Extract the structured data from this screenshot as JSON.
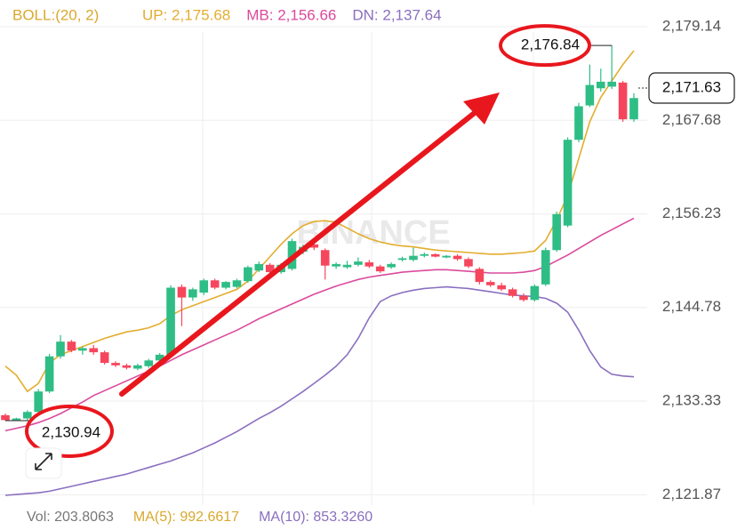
{
  "chart_data": {
    "type": "candlestick",
    "indicator_label": "BOLL:(20, 2)",
    "indicator_color": "#d9a82e",
    "up_color": "#2ebd85",
    "down_color": "#f6465d",
    "open": [
      2131.6,
      2131.0,
      2131.2,
      2132.0,
      2134.5,
      2138.8,
      2140.6,
      2139.5,
      2139.8,
      2139.3,
      2138.0,
      2137.7,
      2137.3,
      2137.6,
      2138.3,
      2139.0,
      2147.3,
      2146.0,
      2146.6,
      2148.1,
      2147.2,
      2147.3,
      2148.0,
      2149.3,
      2150.0,
      2149.1,
      2149.5,
      2151.6,
      2152.5,
      2151.8,
      2149.8,
      2149.7,
      2150.0,
      2150.3,
      2149.8,
      2149.7,
      2150.6,
      2150.6,
      2151.1,
      2151.3,
      2150.9,
      2151.1,
      2150.7,
      2149.5,
      2147.9,
      2147.5,
      2147.0,
      2146.2,
      2145.7,
      2147.6,
      2151.8,
      2154.8,
      2165.3,
      2169.5,
      2171.6,
      2171.8,
      2172.3,
      2167.8
    ],
    "high": [
      2131.8,
      2131.3,
      2132.2,
      2134.8,
      2139.1,
      2141.4,
      2140.8,
      2140.0,
      2140.2,
      2139.5,
      2138.2,
      2137.9,
      2137.9,
      2138.5,
      2139.2,
      2147.5,
      2147.6,
      2147.2,
      2148.3,
      2148.3,
      2148.0,
      2148.3,
      2149.9,
      2150.4,
      2150.2,
      2150.2,
      2153.2,
      2152.5,
      2152.8,
      2152.0,
      2150.3,
      2150.5,
      2150.9,
      2150.6,
      2150.0,
      2150.3,
      2151.0,
      2152.1,
      2151.5,
      2151.4,
      2151.2,
      2151.3,
      2150.9,
      2149.7,
      2148.1,
      2147.8,
      2147.2,
      2146.5,
      2147.6,
      2152.1,
      2156.5,
      2165.6,
      2169.8,
      2174.5,
      2174.0,
      2176.84,
      2172.5,
      2171.0
    ],
    "low": [
      2130.94,
      2130.95,
      2131.0,
      2131.8,
      2134.3,
      2138.5,
      2139.3,
      2139.0,
      2139.0,
      2137.8,
      2137.5,
      2137.2,
      2137.1,
      2137.4,
      2138.1,
      2138.8,
      2142.5,
      2145.6,
      2146.3,
      2147.0,
      2147.0,
      2147.1,
      2147.8,
      2149.1,
      2148.9,
      2148.9,
      2149.3,
      2151.3,
      2151.8,
      2148.2,
      2149.5,
      2149.5,
      2149.8,
      2149.6,
      2149.0,
      2149.5,
      2150.4,
      2150.4,
      2150.9,
      2150.9,
      2150.8,
      2150.5,
      2149.6,
      2147.6,
      2147.3,
      2146.8,
      2146.0,
      2145.5,
      2145.5,
      2147.4,
      2151.6,
      2154.6,
      2165.0,
      2169.3,
      2171.2,
      2171.5,
      2167.5,
      2167.5
    ],
    "close": [
      2131.0,
      2131.2,
      2132.0,
      2134.5,
      2138.8,
      2140.6,
      2139.5,
      2139.8,
      2139.3,
      2138.0,
      2137.7,
      2137.4,
      2137.7,
      2138.3,
      2139.0,
      2147.2,
      2146.0,
      2147.0,
      2148.1,
      2147.2,
      2147.9,
      2148.1,
      2149.7,
      2150.1,
      2149.1,
      2150.0,
      2152.9,
      2152.2,
      2152.1,
      2149.9,
      2150.1,
      2150.0,
      2150.4,
      2149.8,
      2149.2,
      2150.1,
      2150.8,
      2151.1,
      2151.3,
      2151.0,
      2151.1,
      2150.7,
      2149.8,
      2147.9,
      2147.5,
      2147.0,
      2146.2,
      2145.7,
      2147.4,
      2151.8,
      2156.2,
      2165.3,
      2169.4,
      2172.0,
      2172.4,
      2172.4,
      2167.8,
      2170.4
    ],
    "series": [
      {
        "name": "UP: 2,175.68",
        "color": "#e3ad2f",
        "values": [
          2137.6,
          2136.5,
          2134.5,
          2135.5,
          2138,
          2139,
          2139.5,
          2140,
          2140.5,
          2141,
          2141.4,
          2141.8,
          2142,
          2142.3,
          2142.8,
          2143.8,
          2144.5,
          2145,
          2145.5,
          2146,
          2146.5,
          2147,
          2148,
          2149.5,
          2151,
          2152.5,
          2153.8,
          2154.8,
          2155.3,
          2155.4,
          2155.2,
          2154.5,
          2153.8,
          2153.2,
          2152.8,
          2152.5,
          2152.3,
          2152.2,
          2152,
          2151.8,
          2151.7,
          2151.6,
          2151.5,
          2151.4,
          2151.3,
          2151.3,
          2151.4,
          2151.5,
          2151.7,
          2153,
          2155.5,
          2158.5,
          2163,
          2167.5,
          2170.5,
          2172.5,
          2174.5,
          2176.2
        ]
      },
      {
        "name": "MB: 2,156.66",
        "color": "#db4a9c",
        "values": [
          2129.7,
          2130,
          2130.3,
          2130.7,
          2131.2,
          2131.8,
          2132.5,
          2133.2,
          2134,
          2134.6,
          2135.2,
          2135.8,
          2136.4,
          2137,
          2137.6,
          2138.3,
          2139,
          2139.6,
          2140.2,
          2140.8,
          2141.4,
          2142,
          2142.7,
          2143.4,
          2144,
          2144.6,
          2145.2,
          2145.8,
          2146.4,
          2146.9,
          2147.4,
          2147.8,
          2148.2,
          2148.5,
          2148.7,
          2148.9,
          2149.1,
          2149.2,
          2149.3,
          2149.4,
          2149.4,
          2149.3,
          2149.2,
          2149.1,
          2149,
          2149,
          2149,
          2149.1,
          2149.3,
          2149.8,
          2150.5,
          2151.2,
          2152,
          2152.8,
          2153.6,
          2154.3,
          2155,
          2155.7
        ]
      },
      {
        "name": "DN: 2,137.64",
        "color": "#8a6fbf",
        "values": [
          2121.8,
          2121.9,
          2122,
          2122.1,
          2122.3,
          2122.6,
          2122.9,
          2123.2,
          2123.5,
          2123.8,
          2124.1,
          2124.4,
          2124.8,
          2125.2,
          2125.6,
          2126,
          2126.5,
          2127,
          2127.6,
          2128.2,
          2128.9,
          2129.6,
          2130.4,
          2131.2,
          2131.9,
          2132.7,
          2133.6,
          2134.5,
          2135.5,
          2136.5,
          2137.6,
          2139,
          2141,
          2143.5,
          2145.5,
          2146.2,
          2146.6,
          2146.9,
          2147.1,
          2147.2,
          2147.3,
          2147.2,
          2147.1,
          2146.9,
          2146.7,
          2146.5,
          2146.3,
          2146.2,
          2146.1,
          2145.9,
          2145.3,
          2144.2,
          2142,
          2139.5,
          2137.5,
          2136.6,
          2136.4,
          2136.3
        ]
      }
    ],
    "ylim": [
      2120.6,
      2182.4
    ],
    "yticks": [
      {
        "value": 2179.14,
        "label": "2,179.14"
      },
      {
        "value": 2167.68,
        "label": "2,167.68"
      },
      {
        "value": 2156.23,
        "label": "2,156.23"
      },
      {
        "value": 2144.78,
        "label": "2,144.78"
      },
      {
        "value": 2133.33,
        "label": "2,133.33"
      },
      {
        "value": 2121.87,
        "label": "2,121.87"
      }
    ],
    "grid": true,
    "max_label": {
      "value": 2176.84,
      "label": "2,176.84"
    },
    "min_label": {
      "value": 2130.94,
      "label": "2,130.94"
    },
    "last_price": {
      "value": 2171.63,
      "label": "2,171.63"
    },
    "watermark": "BINANCE",
    "footer": [
      {
        "text": "Vol: 203.8063",
        "color": "#777777"
      },
      {
        "text": "MA(5): 992.6617",
        "color": "#d9a82e"
      },
      {
        "text": "MA(10): 853.3260",
        "color": "#8a6fbf"
      }
    ]
  }
}
